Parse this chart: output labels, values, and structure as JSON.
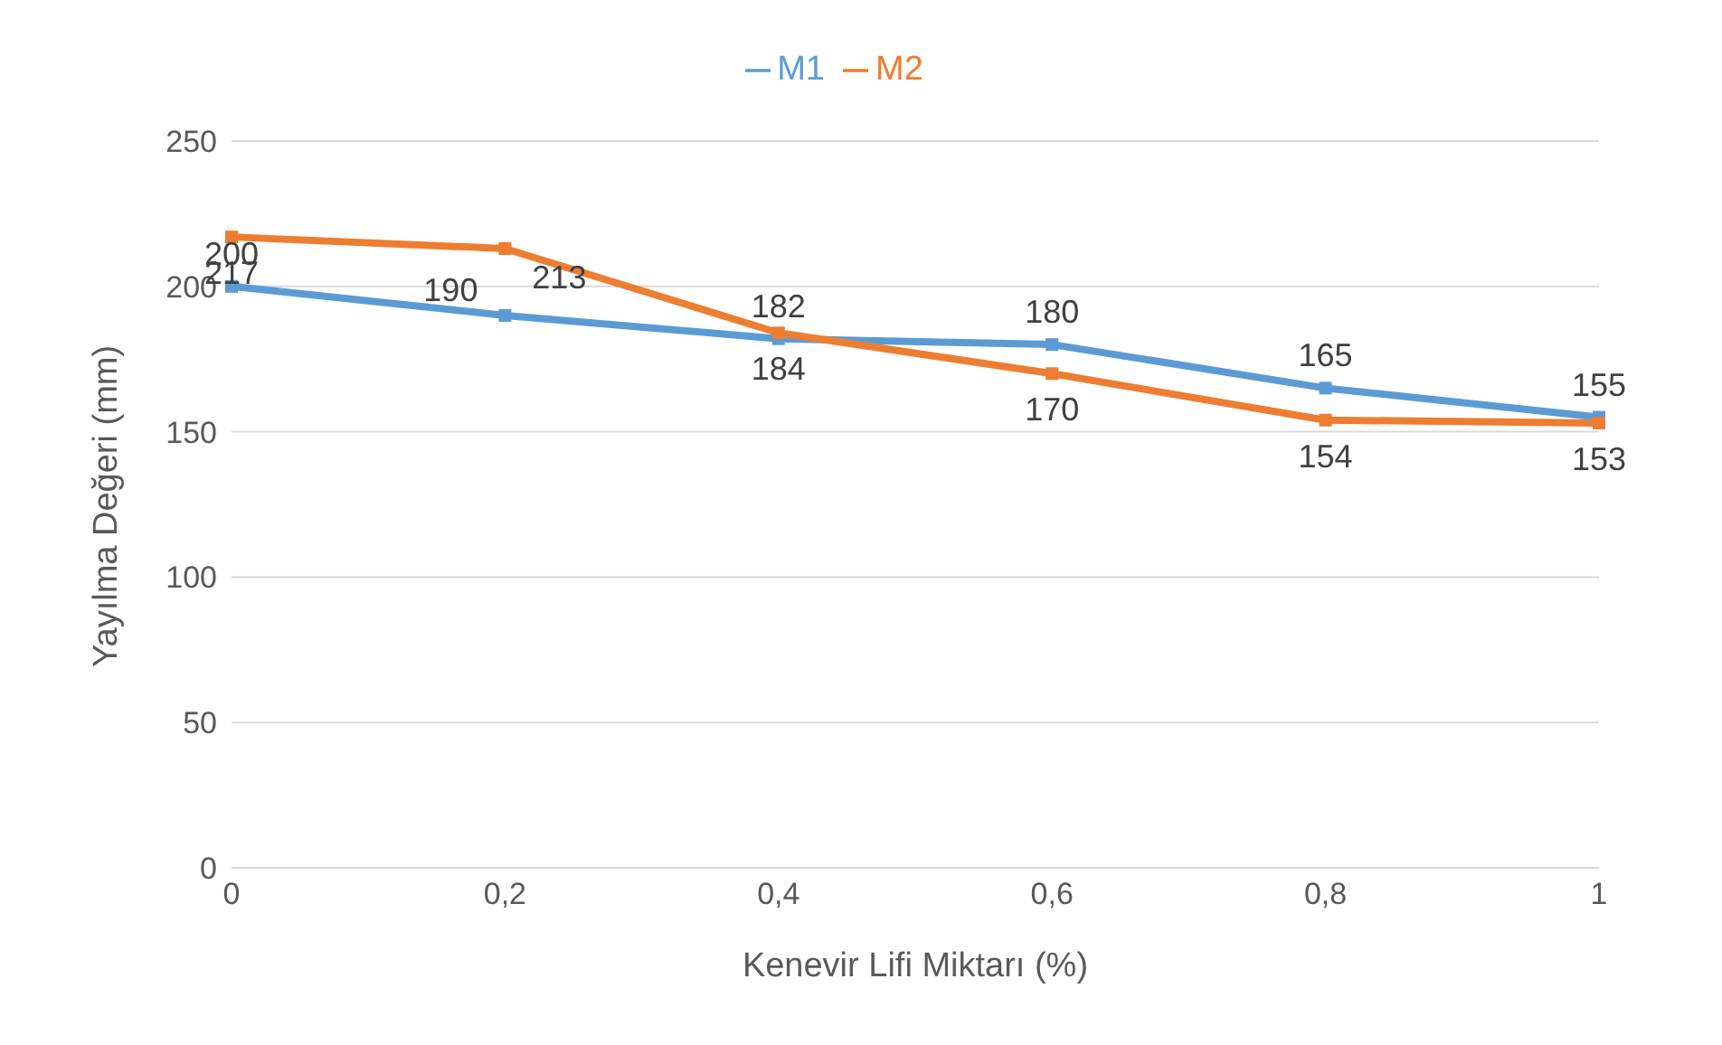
{
  "chart_data": {
    "type": "line",
    "xlabel": "Kenevir Lifi Miktarı (%)",
    "ylabel": "Yayılma Değeri (mm)",
    "categories": [
      "0",
      "0,2",
      "0,4",
      "0,6",
      "0,8",
      "1"
    ],
    "series": [
      {
        "name": "M1",
        "color": "#5b9bd5",
        "values": [
          200,
          190,
          182,
          180,
          165,
          155
        ]
      },
      {
        "name": "M2",
        "color": "#ed7d31",
        "values": [
          217,
          213,
          184,
          170,
          154,
          153
        ]
      }
    ],
    "ylim": [
      0,
      250
    ],
    "yticks": [
      0,
      50,
      100,
      150,
      200,
      250
    ],
    "grid": "y",
    "legend": "top",
    "marker": "square",
    "data_labels": true
  }
}
